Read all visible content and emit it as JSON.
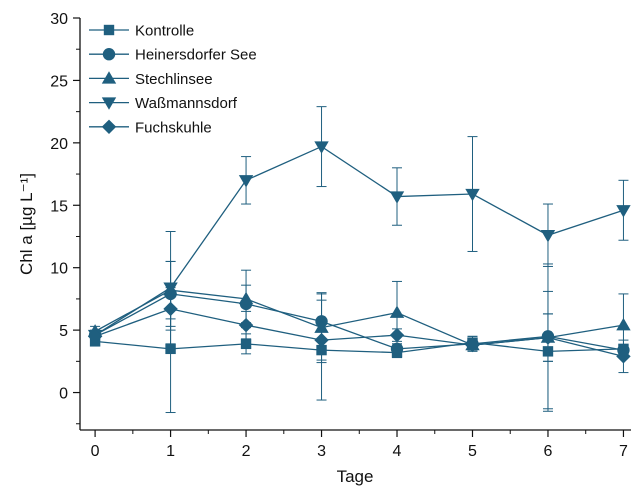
{
  "chart_data": {
    "type": "line",
    "xlabel": "Tage",
    "ylabel": "Chl a [µg L⁻¹]",
    "x": [
      0,
      1,
      2,
      3,
      4,
      5,
      6,
      7
    ],
    "xlim": [
      -0.2,
      7.1
    ],
    "ylim": [
      -3.0,
      30
    ],
    "xticks": [
      "0",
      "1",
      "2",
      "3",
      "4",
      "5",
      "6",
      "7"
    ],
    "yticks": [
      "0",
      "5",
      "10",
      "15",
      "20",
      "25",
      "30"
    ],
    "grid": false,
    "legend_position": "top-left",
    "color": "#1f5f7f",
    "series": [
      {
        "name": "Kontrolle",
        "marker": "square",
        "values": [
          4.1,
          3.5,
          3.9,
          3.4,
          3.2,
          4.0,
          3.3,
          3.5
        ],
        "errors": [
          0.3,
          5.1,
          0.8,
          4.0,
          0.4,
          0.5,
          4.8,
          0.3
        ]
      },
      {
        "name": "Heinersdorfer See",
        "marker": "circle",
        "values": [
          4.6,
          7.9,
          7.1,
          5.7,
          3.5,
          3.9,
          4.5,
          3.4
        ],
        "errors": [
          0.4,
          2.6,
          1.5,
          2.2,
          0.4,
          0.6,
          5.8,
          0.4
        ]
      },
      {
        "name": "Stechlinsee",
        "marker": "triangle-up",
        "values": [
          4.9,
          8.2,
          7.5,
          5.2,
          6.4,
          3.8,
          4.4,
          5.4
        ],
        "errors": [
          0.4,
          2.3,
          2.3,
          2.8,
          2.5,
          0.4,
          1.9,
          2.5
        ]
      },
      {
        "name": "Waßmannsdorf",
        "marker": "triangle-down",
        "values": [
          4.6,
          8.4,
          17.0,
          19.7,
          15.7,
          15.9,
          12.6,
          14.6
        ],
        "errors": [
          0.3,
          4.5,
          1.9,
          3.2,
          2.3,
          4.6,
          2.5,
          2.4
        ]
      },
      {
        "name": "Fuchskuhle",
        "marker": "diamond",
        "values": [
          4.5,
          6.7,
          5.4,
          4.2,
          4.6,
          3.8,
          4.4,
          2.9
        ],
        "errors": [
          0.3,
          1.7,
          1.1,
          1.6,
          0.5,
          0.4,
          1.9,
          1.3
        ]
      }
    ]
  }
}
